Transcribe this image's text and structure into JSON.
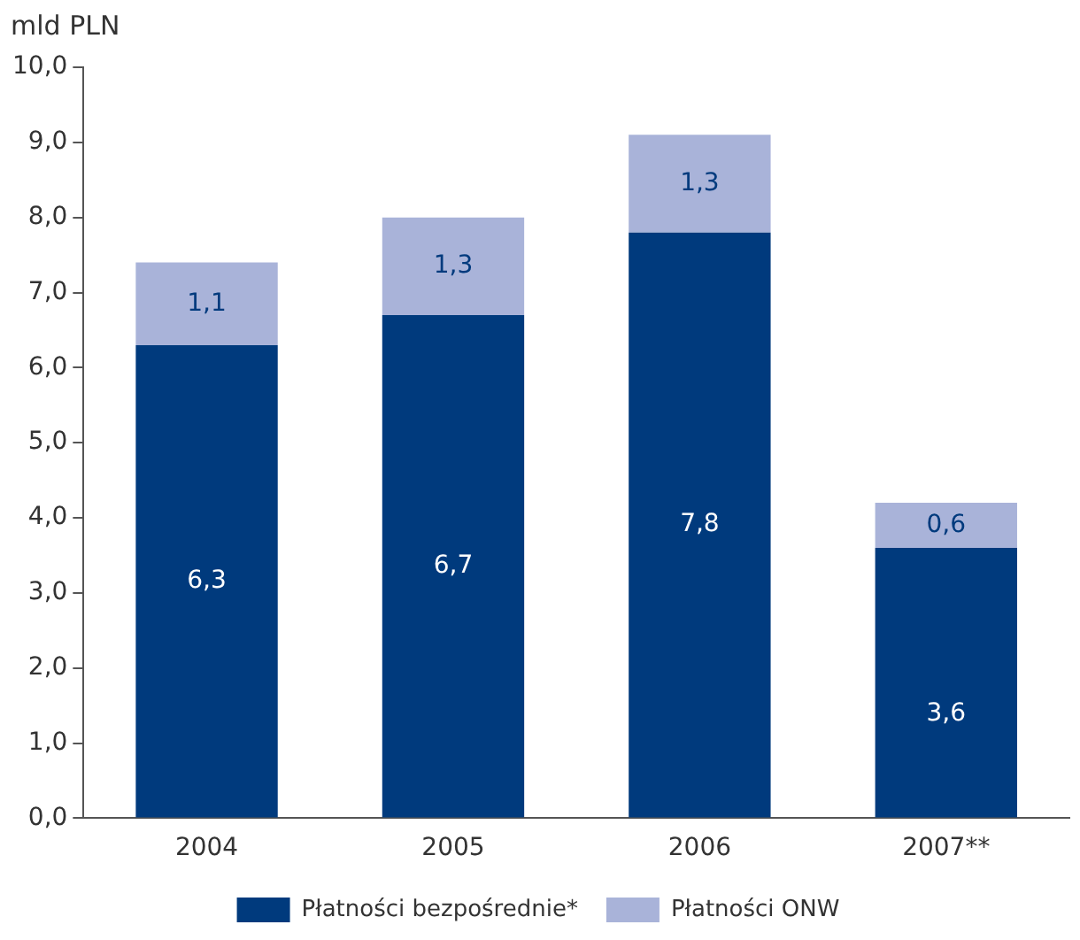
{
  "chart_data": {
    "type": "bar",
    "stacked": true,
    "ylabel": "mld PLN",
    "categories": [
      "2004",
      "2005",
      "2006",
      "2007**"
    ],
    "series": [
      {
        "name": "Płatności bezpośrednie*",
        "color": "#003a7d",
        "values": [
          6.3,
          6.7,
          7.8,
          3.6
        ],
        "value_labels": [
          "6,3",
          "6,7",
          "7,8",
          "3,6"
        ]
      },
      {
        "name": "Płatności ONW",
        "color": "#a9b3d9",
        "values": [
          1.1,
          1.3,
          1.3,
          0.6
        ],
        "value_labels": [
          "1,1",
          "1,3",
          "1,3",
          "0,6"
        ]
      }
    ],
    "ylim": [
      0,
      10
    ],
    "yticks": [
      {
        "value": 0,
        "label": "0,0"
      },
      {
        "value": 1,
        "label": "1,0"
      },
      {
        "value": 2,
        "label": "2,0"
      },
      {
        "value": 3,
        "label": "3,0"
      },
      {
        "value": 4,
        "label": "4,0"
      },
      {
        "value": 5,
        "label": "5,0"
      },
      {
        "value": 6,
        "label": "6,0"
      },
      {
        "value": 7,
        "label": "7,0"
      },
      {
        "value": 8,
        "label": "8,0"
      },
      {
        "value": 9,
        "label": "9,0"
      },
      {
        "value": 10,
        "label": "10,0"
      }
    ],
    "grid": false,
    "legend": "bottom"
  }
}
